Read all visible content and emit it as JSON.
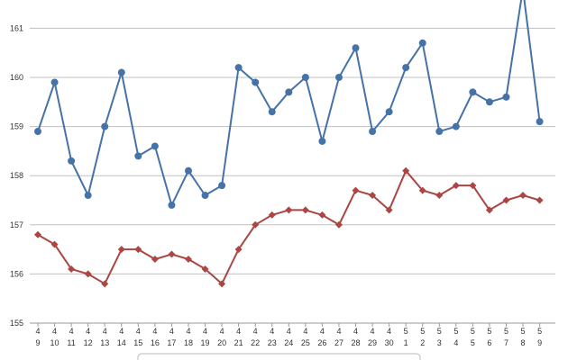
{
  "chart_data": {
    "type": "line",
    "title": "",
    "xlabel": "",
    "ylabel": "",
    "ylim": [
      155,
      161.6
    ],
    "yticks": [
      155,
      156,
      157,
      158,
      159,
      160,
      161
    ],
    "grid": true,
    "legend": "none",
    "categories": [
      {
        "month": "4",
        "day": "9"
      },
      {
        "month": "4",
        "day": "10"
      },
      {
        "month": "4",
        "day": "11"
      },
      {
        "month": "4",
        "day": "12"
      },
      {
        "month": "4",
        "day": "13"
      },
      {
        "month": "4",
        "day": "14"
      },
      {
        "month": "4",
        "day": "15"
      },
      {
        "month": "4",
        "day": "16"
      },
      {
        "month": "4",
        "day": "17"
      },
      {
        "month": "4",
        "day": "18"
      },
      {
        "month": "4",
        "day": "19"
      },
      {
        "month": "4",
        "day": "20"
      },
      {
        "month": "4",
        "day": "21"
      },
      {
        "month": "4",
        "day": "22"
      },
      {
        "month": "4",
        "day": "23"
      },
      {
        "month": "4",
        "day": "24"
      },
      {
        "month": "4",
        "day": "25"
      },
      {
        "month": "4",
        "day": "26"
      },
      {
        "month": "4",
        "day": "27"
      },
      {
        "month": "4",
        "day": "28"
      },
      {
        "month": "4",
        "day": "29"
      },
      {
        "month": "4",
        "day": "30"
      },
      {
        "month": "5",
        "day": "1"
      },
      {
        "month": "5",
        "day": "2"
      },
      {
        "month": "5",
        "day": "3"
      },
      {
        "month": "5",
        "day": "4"
      },
      {
        "month": "5",
        "day": "5"
      },
      {
        "month": "5",
        "day": "6"
      },
      {
        "month": "5",
        "day": "7"
      },
      {
        "month": "5",
        "day": "8"
      },
      {
        "month": "5",
        "day": "9"
      }
    ],
    "series": [
      {
        "color": "#4572a7",
        "marker": "circle",
        "values": [
          158.9,
          159.9,
          158.3,
          157.6,
          159.0,
          160.1,
          158.4,
          158.6,
          157.4,
          158.1,
          157.6,
          157.8,
          160.2,
          159.9,
          159.3,
          159.7,
          160.0,
          158.7,
          160.0,
          160.6,
          158.9,
          159.3,
          160.2,
          160.7,
          158.9,
          159.0,
          159.7,
          159.5,
          159.6,
          161.8,
          159.1
        ]
      },
      {
        "color": "#aa4643",
        "marker": "diamond",
        "values": [
          156.8,
          156.6,
          156.1,
          156.0,
          155.8,
          156.5,
          156.5,
          156.3,
          156.4,
          156.3,
          156.1,
          155.8,
          156.5,
          157.0,
          157.2,
          157.3,
          157.3,
          157.2,
          157.0,
          157.7,
          157.6,
          157.3,
          158.1,
          157.7,
          157.6,
          157.8,
          157.8,
          157.3,
          157.5,
          157.6,
          157.5
        ]
      }
    ]
  },
  "colors": {
    "grid": "#c0c0c0",
    "axis": "#999999",
    "ytick_text": "#4572a7",
    "xtick_text": "#333333"
  }
}
